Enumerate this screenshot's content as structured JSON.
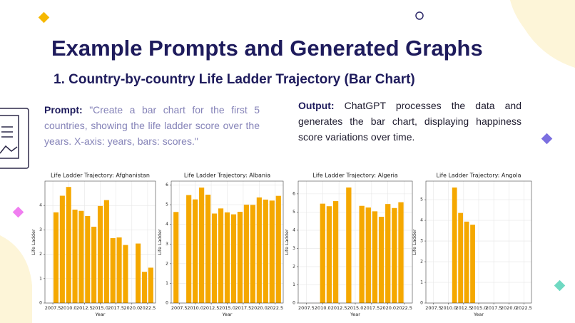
{
  "slide": {
    "title": "Example Prompts and Generated Graphs",
    "subtitle": "1. Country-by-country Life Ladder Trajectory (Bar Chart)",
    "prompt": {
      "label": "Prompt:",
      "text": "\"Create a bar chart for the first 5 countries, showing the life ladder score over the years. X-axis: years, bars: scores.\""
    },
    "output": {
      "label": "Output:",
      "text": "ChatGPT processes the data and generates the bar chart, displaying happiness score variations over time."
    }
  },
  "chart_data": [
    {
      "type": "bar",
      "title": "Life Ladder Trajectory: Afghanistan",
      "x_label": "Year",
      "y_label": "Life Ladder",
      "color": "#f5a800",
      "grid": true,
      "x": [
        2008,
        2009,
        2010,
        2011,
        2012,
        2013,
        2014,
        2015,
        2016,
        2017,
        2018,
        2019,
        2021,
        2022,
        2023
      ],
      "values": [
        3.72,
        4.4,
        4.76,
        3.83,
        3.78,
        3.57,
        3.13,
        3.98,
        4.22,
        2.66,
        2.69,
        2.38,
        2.44,
        1.28,
        1.45
      ],
      "xlim": [
        2006.25,
        2023.75
      ],
      "xticks": [
        2007.5,
        {
          "value": 2010,
          "label": "2010.0"
        },
        2012.5,
        {
          "value": 2015,
          "label": "2015.0"
        },
        2017.5,
        {
          "value": 2020,
          "label": "2020.0"
        },
        2022.5
      ],
      "ylim": [
        0,
        5
      ],
      "yticks": [
        0,
        1,
        2,
        3,
        4
      ]
    },
    {
      "type": "bar",
      "title": "Life Ladder Trajectory: Albania",
      "x_label": "Year",
      "y_label": "Life Ladder",
      "color": "#f5a800",
      "grid": true,
      "x": [
        2007,
        2009,
        2010,
        2011,
        2012,
        2013,
        2014,
        2015,
        2016,
        2017,
        2018,
        2019,
        2020,
        2021,
        2022,
        2023
      ],
      "values": [
        4.63,
        5.49,
        5.27,
        5.87,
        5.51,
        4.55,
        4.81,
        4.61,
        4.51,
        4.64,
        5.0,
        4.99,
        5.37,
        5.26,
        5.21,
        5.45
      ],
      "xlim": [
        2006.25,
        2023.75
      ],
      "xticks": [
        2007.5,
        {
          "value": 2010,
          "label": "2010.0"
        },
        2012.5,
        {
          "value": 2015,
          "label": "2015.0"
        },
        2017.5,
        {
          "value": 2020,
          "label": "2020.0"
        },
        2022.5
      ],
      "ylim": [
        0,
        6.2
      ],
      "yticks": [
        0,
        1,
        2,
        3,
        4,
        5,
        6
      ]
    },
    {
      "type": "bar",
      "title": "Life Ladder Trajectory: Algeria",
      "x_label": "Year",
      "y_label": "Life Ladder",
      "color": "#f5a800",
      "grid": true,
      "x": [
        2010,
        2011,
        2012,
        2014,
        2016,
        2017,
        2018,
        2019,
        2020,
        2021,
        2022
      ],
      "values": [
        5.46,
        5.32,
        5.6,
        6.35,
        5.34,
        5.25,
        5.04,
        4.74,
        5.44,
        5.22,
        5.54
      ],
      "xlim": [
        2006.25,
        2023.75
      ],
      "xticks": [
        2007.5,
        {
          "value": 2010,
          "label": "2010.0"
        },
        2012.5,
        {
          "value": 2015,
          "label": "2015.0"
        },
        2017.5,
        {
          "value": 2020,
          "label": "2020.0"
        },
        2022.5
      ],
      "ylim": [
        0,
        6.7
      ],
      "yticks": [
        0,
        1,
        2,
        3,
        4,
        5,
        6
      ]
    },
    {
      "type": "bar",
      "title": "Life Ladder Trajectory: Angola",
      "x_label": "Year",
      "y_label": "Life Ladder",
      "color": "#f5a800",
      "grid": true,
      "x": [
        2011,
        2012,
        2013,
        2014
      ],
      "values": [
        5.59,
        4.36,
        3.94,
        3.79
      ],
      "xlim": [
        2006.25,
        2023.75
      ],
      "xticks": [
        2007.5,
        {
          "value": 2010,
          "label": "2010.0"
        },
        2012.5,
        {
          "value": 2015,
          "label": "2015.0"
        },
        2017.5,
        {
          "value": 2020,
          "label": "2020.0"
        },
        2022.5
      ],
      "ylim": [
        0,
        5.9
      ],
      "yticks": [
        0,
        1,
        2,
        3,
        4,
        5
      ]
    }
  ]
}
